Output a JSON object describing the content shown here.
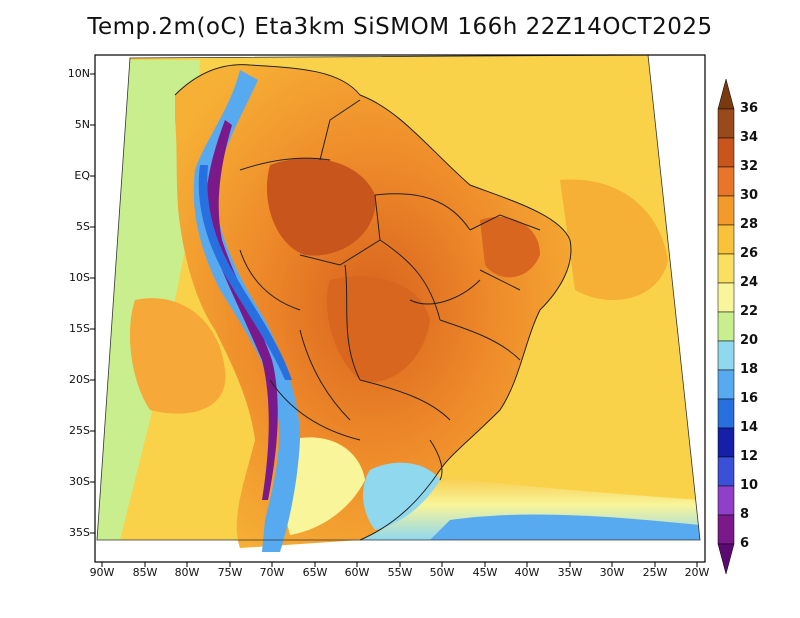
{
  "title": "Temp.2m(oC) Eta3km SiSMOM 166h 22Z14OCT2025",
  "lat_labels": [
    "10N",
    "5N",
    "EQ",
    "5S",
    "10S",
    "15S",
    "20S",
    "25S",
    "30S",
    "35S"
  ],
  "lon_labels": [
    "90W",
    "85W",
    "80W",
    "75W",
    "70W",
    "65W",
    "60W",
    "55W",
    "50W",
    "45W",
    "40W",
    "35W",
    "30W",
    "25W",
    "20W"
  ],
  "colorbar": {
    "ticks": [
      "36",
      "34",
      "32",
      "30",
      "28",
      "26",
      "24",
      "22",
      "20",
      "18",
      "16",
      "14",
      "12",
      "10",
      "8",
      "6"
    ],
    "colors": [
      "#7a3a10",
      "#9a4a1a",
      "#c8561c",
      "#e8762a",
      "#f39a2c",
      "#f8c23a",
      "#f9e060",
      "#f8f59a",
      "#c8ee8e",
      "#8fd8ee",
      "#58aaf0",
      "#2870e0",
      "#1420a8",
      "#3a50d8",
      "#9040c8",
      "#7a1a8a",
      "#5a0a70"
    ]
  }
}
